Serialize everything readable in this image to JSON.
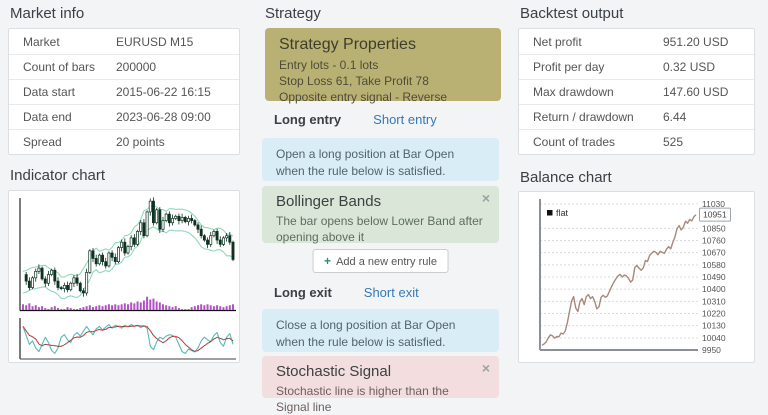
{
  "market_info": {
    "title": "Market info",
    "rows": [
      {
        "label": "Market",
        "value": "EURUSD M15"
      },
      {
        "label": "Count of bars",
        "value": "200000"
      },
      {
        "label": "Data start",
        "value": "2015-06-22 16:15"
      },
      {
        "label": "Data end",
        "value": "2023-06-28 09:00"
      },
      {
        "label": "Spread",
        "value": "20 points"
      }
    ]
  },
  "indicator_chart": {
    "title": "Indicator chart"
  },
  "strategy": {
    "title": "Strategy",
    "properties": {
      "title": "Strategy Properties",
      "lines": [
        "Entry lots - 0.1 lots",
        "Stop Loss 61, Take Profit 78",
        "Opposite entry signal - Reverse"
      ]
    },
    "entry_tabs": {
      "active": "Long entry",
      "inactive": "Short entry"
    },
    "entry_info": "Open a long position at Bar Open when the rule below is satisfied.",
    "entry_rule": {
      "title": "Bollinger Bands",
      "description": "The bar opens below Lower Band after opening above it",
      "close_icon": "×"
    },
    "add_rule_button": {
      "plus_icon": "+",
      "label": "Add a new entry rule"
    },
    "exit_tabs": {
      "active": "Long exit",
      "inactive": "Short exit"
    },
    "exit_info": "Close a long position at Bar Open when the rule below is satisfied.",
    "exit_rule": {
      "title": "Stochastic Signal",
      "description": "Stochastic line is higher than the Signal line",
      "close_icon": "×"
    }
  },
  "backtest_output": {
    "title": "Backtest output",
    "rows": [
      {
        "label": "Net profit",
        "value": "951.20 USD"
      },
      {
        "label": "Profit per day",
        "value": "0.32 USD"
      },
      {
        "label": "Max drawdown",
        "value": "147.60 USD"
      },
      {
        "label": "Return / drawdown",
        "value": "6.44"
      },
      {
        "label": "Count of trades",
        "value": "525"
      }
    ]
  },
  "balance_chart": {
    "title": "Balance chart"
  },
  "chart_data": [
    {
      "id": "balance",
      "type": "line",
      "title": "Balance chart",
      "legend": [
        "flat"
      ],
      "legend_position": "top-left",
      "grid": "dashed-horizontal",
      "ylim": [
        9950,
        11030
      ],
      "yticks": [
        9950,
        10040,
        10130,
        10220,
        10310,
        10400,
        10490,
        10580,
        10670,
        10760,
        10850,
        11030
      ],
      "final_value": 10951,
      "final_label": "10951",
      "colors": {
        "line": "#a8887e",
        "axis": "#8a9096",
        "grid": "#d9dcde",
        "label": "#555555",
        "legend_swatch": "#111111"
      },
      "values": [
        9985,
        9995,
        10010,
        10040,
        10062,
        10055,
        10038,
        10050,
        10048,
        10075,
        10068,
        10090,
        10150,
        10230,
        10310,
        10345,
        10260,
        10235,
        10310,
        10330,
        10285,
        10345,
        10360,
        10330,
        10345,
        10310,
        10255,
        10270,
        10340,
        10355,
        10340,
        10350,
        10385,
        10420,
        10450,
        10475,
        10498,
        10510,
        10490,
        10505,
        10498,
        10480,
        10452,
        10468,
        10560,
        10575,
        10555,
        10540,
        10558,
        10612,
        10605,
        10650,
        10665,
        10680,
        10672,
        10655,
        10680,
        10672,
        10665,
        10695,
        10715,
        10698,
        10745,
        10785,
        10848,
        10870,
        10838,
        10858,
        10902,
        10888,
        10915,
        10905,
        10935,
        10951
      ]
    },
    {
      "id": "indicator",
      "type": "candlestick",
      "title": "Indicator chart",
      "panes": [
        "price+bollinger-bands",
        "volume",
        "stochastic"
      ],
      "colors": {
        "candle": "#0e3322",
        "band": "#8fd8c0",
        "volume": "#b34fc9",
        "stoch_k": "#58b8b8",
        "stoch_d_dash": "#e05050",
        "stoch_d_base": "#26452f",
        "axis": "#444444",
        "baseline": "#111111"
      },
      "price_path": [
        30,
        24,
        18,
        27,
        33,
        36,
        26,
        22,
        30,
        34,
        24,
        18,
        17,
        20,
        16,
        22,
        27,
        22,
        15,
        13,
        32,
        52,
        45,
        40,
        48,
        42,
        38,
        50,
        46,
        42,
        55,
        60,
        50,
        56,
        64,
        58,
        70,
        78,
        66,
        88,
        98,
        78,
        90,
        72,
        80,
        86,
        78,
        82,
        84,
        80,
        83,
        79,
        82,
        80,
        76,
        72,
        66,
        62,
        58,
        66,
        70,
        62,
        58,
        64,
        66,
        60,
        44
      ],
      "volume": [
        6,
        5,
        7,
        4,
        5,
        3,
        4,
        2,
        1,
        3,
        4,
        2,
        1,
        1,
        3,
        2,
        1,
        1,
        2,
        3,
        4,
        5,
        3,
        4,
        5,
        4,
        5,
        6,
        5,
        6,
        5,
        6,
        7,
        6,
        8,
        7,
        9,
        8,
        10,
        14,
        11,
        12,
        9,
        8,
        6,
        5,
        4,
        3,
        4,
        2,
        1,
        1,
        1,
        3,
        4,
        5,
        6,
        5,
        6,
        5,
        4,
        5,
        4,
        3,
        4,
        5,
        6
      ],
      "stoch_k": [
        85,
        60,
        35,
        45,
        25,
        15,
        35,
        55,
        40,
        18,
        10,
        25,
        55,
        62,
        48,
        40,
        60,
        68,
        58,
        72,
        85,
        72,
        62,
        78,
        85,
        75,
        83,
        90,
        80,
        88,
        85,
        80,
        88,
        84,
        90,
        86,
        88,
        82,
        86,
        80,
        30,
        20,
        42,
        55,
        50,
        58,
        62,
        60,
        55,
        35,
        15,
        10,
        22,
        18,
        14,
        25,
        45,
        55,
        48,
        42,
        60,
        68,
        40,
        30,
        55,
        65,
        35
      ]
    }
  ]
}
